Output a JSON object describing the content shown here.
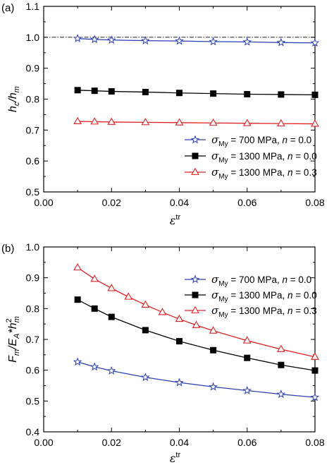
{
  "chart_data": [
    {
      "panel_label": "(a)",
      "type": "line",
      "xlabel": "ε",
      "xlabel_sup": "tr",
      "ylabel": "h",
      "ylabel_sub": "c",
      "ylabel_mid": "/h",
      "ylabel_sub2": "m",
      "xlim": [
        0.0,
        0.08
      ],
      "ylim": [
        0.5,
        1.1
      ],
      "xticks": [
        "0.00",
        "0.02",
        "0.04",
        "0.06",
        "0.08"
      ],
      "yticks": [
        "0.5",
        "0.6",
        "0.7",
        "0.8",
        "0.9",
        "1.0",
        "1.1"
      ],
      "reference_line": {
        "y": 1.0,
        "style": "dash-dot"
      },
      "legend_position": "bottom-right",
      "x": [
        0.01,
        0.015,
        0.02,
        0.03,
        0.04,
        0.05,
        0.06,
        0.07,
        0.08
      ],
      "series": [
        {
          "name": "σ",
          "name_sub": "My",
          "name_rest": " = 700 MPa,   ",
          "n_label": "n",
          "n_value": " = 0.0",
          "color": "#2b3fb5",
          "marker": "star",
          "values": [
            0.996,
            0.993,
            0.991,
            0.989,
            0.988,
            0.986,
            0.985,
            0.983,
            0.982
          ]
        },
        {
          "name": "σ",
          "name_sub": "My",
          "name_rest": " = 1300 MPa,   ",
          "n_label": "n",
          "n_value": " = 0.0",
          "color": "#000000",
          "marker": "square",
          "values": [
            0.829,
            0.827,
            0.825,
            0.823,
            0.82,
            0.818,
            0.816,
            0.815,
            0.814
          ]
        },
        {
          "name": "σ",
          "name_sub": "My",
          "name_rest": " = 1300 MPa,   ",
          "n_label": "n",
          "n_value": " = 0.3",
          "color": "#e02020",
          "marker": "triangle",
          "values": [
            0.728,
            0.727,
            0.726,
            0.725,
            0.724,
            0.723,
            0.722,
            0.721,
            0.72
          ]
        }
      ]
    },
    {
      "panel_label": "(b)",
      "type": "line",
      "xlabel": "ε",
      "xlabel_sup": "tr",
      "ylabel": "F",
      "ylabel_sub": "m",
      "ylabel_mid": "/E",
      "ylabel_sub2": "A",
      "ylabel_tail": "*h",
      "ylabel_sup3": "2",
      "ylabel_sub3": "m",
      "xlim": [
        0.0,
        0.08
      ],
      "ylim": [
        0.4,
        1.0
      ],
      "xticks": [
        "0.00",
        "0.02",
        "0.04",
        "0.06",
        "0.08"
      ],
      "yticks": [
        "0.4",
        "0.5",
        "0.6",
        "0.7",
        "0.8",
        "0.9",
        "1.0"
      ],
      "legend_position": "top-right",
      "series": [
        {
          "name": "σ",
          "name_sub": "My",
          "name_rest": " = 700 MPa,   ",
          "n_label": "n",
          "n_value": " = 0.0",
          "color": "#2b3fb5",
          "marker": "star",
          "x": [
            0.01,
            0.015,
            0.02,
            0.03,
            0.04,
            0.05,
            0.06,
            0.07,
            0.08
          ],
          "values": [
            0.627,
            0.611,
            0.598,
            0.577,
            0.56,
            0.546,
            0.534,
            0.522,
            0.512
          ]
        },
        {
          "name": "σ",
          "name_sub": "My",
          "name_rest": " = 1300 MPa,   ",
          "n_label": "n",
          "n_value": " = 0.0",
          "color": "#000000",
          "marker": "square",
          "x": [
            0.01,
            0.015,
            0.02,
            0.03,
            0.04,
            0.05,
            0.06,
            0.07,
            0.08
          ],
          "values": [
            0.829,
            0.8,
            0.773,
            0.73,
            0.694,
            0.665,
            0.64,
            0.617,
            0.599
          ]
        },
        {
          "name": "σ",
          "name_sub": "My",
          "name_rest": " = 1300 MPa,   ",
          "n_label": "n",
          "n_value": " = 0.3",
          "color": "#e02020",
          "marker": "triangle",
          "x": [
            0.01,
            0.015,
            0.02,
            0.025,
            0.03,
            0.035,
            0.04,
            0.045,
            0.05,
            0.06,
            0.07,
            0.08
          ],
          "values": [
            0.933,
            0.896,
            0.866,
            0.838,
            0.812,
            0.788,
            0.766,
            0.746,
            0.728,
            0.696,
            0.668,
            0.643
          ]
        }
      ]
    }
  ]
}
